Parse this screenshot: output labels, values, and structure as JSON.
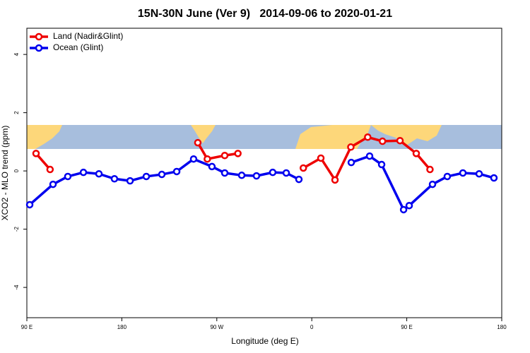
{
  "chart_data": {
    "type": "line",
    "title": "15N-30N June (Ver 9)   2014-09-06 to 2020-01-21",
    "x_label": "Longitude (deg E)",
    "y_label": "XCO2 - MLO trend (ppm)",
    "xlim": [
      90,
      540
    ],
    "ylim": [
      -5.04,
      4.9
    ],
    "xticks": [
      {
        "value": 90,
        "label": "90 E"
      },
      180,
      {
        "value": 270,
        "label": "90 W"
      },
      {
        "value": 360,
        "label": "0"
      },
      {
        "value": 450,
        "label": "90 E"
      },
      {
        "value": 540,
        "label": "180"
      }
    ],
    "yticks": [
      -4,
      -2,
      0,
      2,
      4
    ],
    "legend": "top-left",
    "series": [
      {
        "name": "Land (Nadir&Glint)",
        "color": "#ee0000",
        "x": [
          98.7,
          112,
          null,
          252,
          261,
          277.5,
          290,
          null,
          352,
          368.6,
          382,
          397,
          413,
          427,
          443.6,
          459,
          472
        ],
        "values": [
          0.6,
          0.05,
          null,
          0.97,
          0.41,
          0.53,
          0.6,
          null,
          0.1,
          0.44,
          -0.31,
          0.82,
          1.16,
          1.02,
          1.04,
          0.6,
          0.05
        ]
      },
      {
        "name": "Ocean (Glint)",
        "color": "#0000ee",
        "x": [
          92.7,
          114.8,
          128.8,
          143.6,
          158.3,
          173,
          187.8,
          203.2,
          217.9,
          232,
          248,
          265.4,
          277.5,
          293.6,
          307.6,
          323,
          335.8,
          347.8,
          null,
          397.4,
          414.8,
          426.2,
          447,
          452.3,
          474.4,
          488.4,
          503.2,
          518.6,
          532.6
        ],
        "values": [
          -1.16,
          -0.46,
          -0.19,
          -0.05,
          -0.1,
          -0.27,
          -0.34,
          -0.19,
          -0.12,
          -0.02,
          0.41,
          0.15,
          -0.07,
          -0.15,
          -0.17,
          -0.05,
          -0.07,
          -0.29,
          null,
          0.29,
          0.51,
          0.22,
          -1.33,
          -1.19,
          -0.46,
          -0.19,
          -0.07,
          -0.1,
          -0.24
        ]
      }
    ]
  }
}
